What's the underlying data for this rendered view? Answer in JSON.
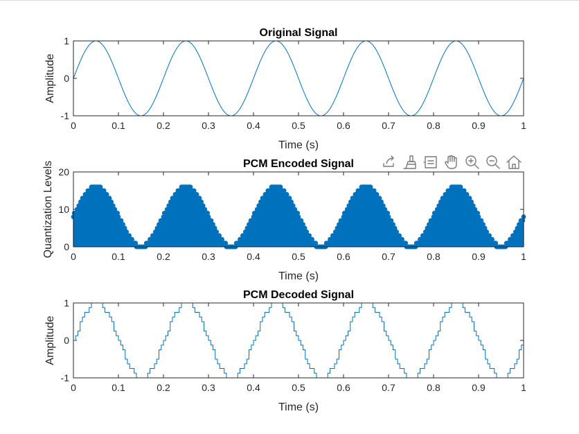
{
  "colors": {
    "line": "#0072BD",
    "axes": "#262626",
    "background": "#ffffff"
  },
  "toolbar": {
    "icons": [
      "export-icon",
      "brush-icon",
      "datatip-icon",
      "pan-icon",
      "zoom-in-icon",
      "zoom-out-icon",
      "home-icon"
    ]
  },
  "chart_data": [
    {
      "type": "line",
      "title": "Original Signal",
      "xlabel": "Time (s)",
      "ylabel": "Amplitude",
      "xlim": [
        0,
        1
      ],
      "ylim": [
        -1,
        1
      ],
      "xticks": [
        "0",
        "0.1",
        "0.2",
        "0.3",
        "0.4",
        "0.5",
        "0.6",
        "0.7",
        "0.8",
        "0.9",
        "1"
      ],
      "yticks": [
        "-1",
        "0",
        "1"
      ],
      "frequency_hz": 5,
      "amplitude": 1,
      "grid": false,
      "legend": false
    },
    {
      "type": "scatter",
      "title": "PCM Encoded Signal",
      "xlabel": "Time (s)",
      "ylabel": "Quantization Levels",
      "xlim": [
        0,
        1
      ],
      "ylim": [
        0,
        20
      ],
      "xticks": [
        "0",
        "0.1",
        "0.2",
        "0.3",
        "0.4",
        "0.5",
        "0.6",
        "0.7",
        "0.8",
        "0.9",
        "1"
      ],
      "yticks": [
        "0",
        "10",
        "20"
      ],
      "quantization_levels": 16,
      "frequency_hz": 5,
      "stem": true,
      "grid": false,
      "legend": false
    },
    {
      "type": "line",
      "title": "PCM Decoded Signal",
      "xlabel": "Time (s)",
      "ylabel": "Amplitude",
      "xlim": [
        0,
        1
      ],
      "ylim": [
        -1,
        1
      ],
      "xticks": [
        "0",
        "0.1",
        "0.2",
        "0.3",
        "0.4",
        "0.5",
        "0.6",
        "0.7",
        "0.8",
        "0.9",
        "1"
      ],
      "yticks": [
        "-1",
        "0",
        "1"
      ],
      "quantization_levels": 16,
      "frequency_hz": 5,
      "stairs": true,
      "grid": false,
      "legend": false
    }
  ]
}
